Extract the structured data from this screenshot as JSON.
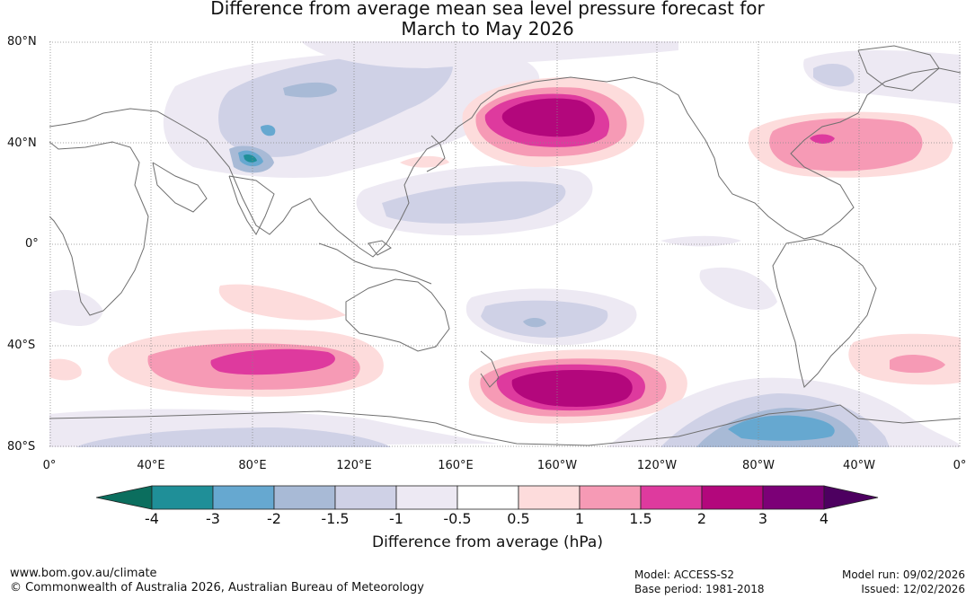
{
  "title_line1": "Difference from average mean sea level pressure forecast for",
  "title_line2": "March to May 2026",
  "lat_labels": [
    "80°N",
    "40°N",
    "0°",
    "40°S",
    "80°S"
  ],
  "lon_labels": [
    "0°",
    "40°E",
    "80°E",
    "120°E",
    "160°E",
    "160°W",
    "120°W",
    "80°W",
    "40°W",
    "0°"
  ],
  "colorbar": {
    "label": "Difference from average (hPa)",
    "ticks": [
      "-4",
      "-3",
      "-2",
      "-1.5",
      "-1",
      "-0.5",
      "0.5",
      "1",
      "1.5",
      "2",
      "3",
      "4"
    ],
    "colors": {
      "below_min": "#0b6e5e",
      "bins": [
        "#1f8f98",
        "#66a8d0",
        "#a8bad6",
        "#cfd1e6",
        "#ede9f3",
        "#ffffff",
        "#fddcdc",
        "#f69ab5",
        "#de3a9e",
        "#b3077c",
        "#7c0077"
      ],
      "above_max": "#4d0060"
    }
  },
  "map": {
    "ocean": "#ffffff",
    "coastline": "#6f6f6f",
    "gridline": "#888888",
    "regions": [
      {
        "name": "North Pacific high anomaly",
        "level": "+3"
      },
      {
        "name": "North Atlantic high anomaly",
        "level": "+2"
      },
      {
        "name": "Southern Indian Ocean high anomaly",
        "level": "+2"
      },
      {
        "name": "South Pacific high anomaly",
        "level": "+3"
      },
      {
        "name": "Antarctic low anomaly",
        "level": "-3"
      },
      {
        "name": "Central Asia low anomaly",
        "level": "-4"
      }
    ]
  },
  "footer": {
    "url": "www.bom.gov.au/climate",
    "copyright": "© Commonwealth of Australia 2026, Australian Bureau of Meteorology",
    "model": "Model: ACCESS-S2",
    "base_period": "Base period: 1981-2018",
    "model_run": "Model run: 09/02/2026",
    "issued": "Issued: 12/02/2026"
  }
}
